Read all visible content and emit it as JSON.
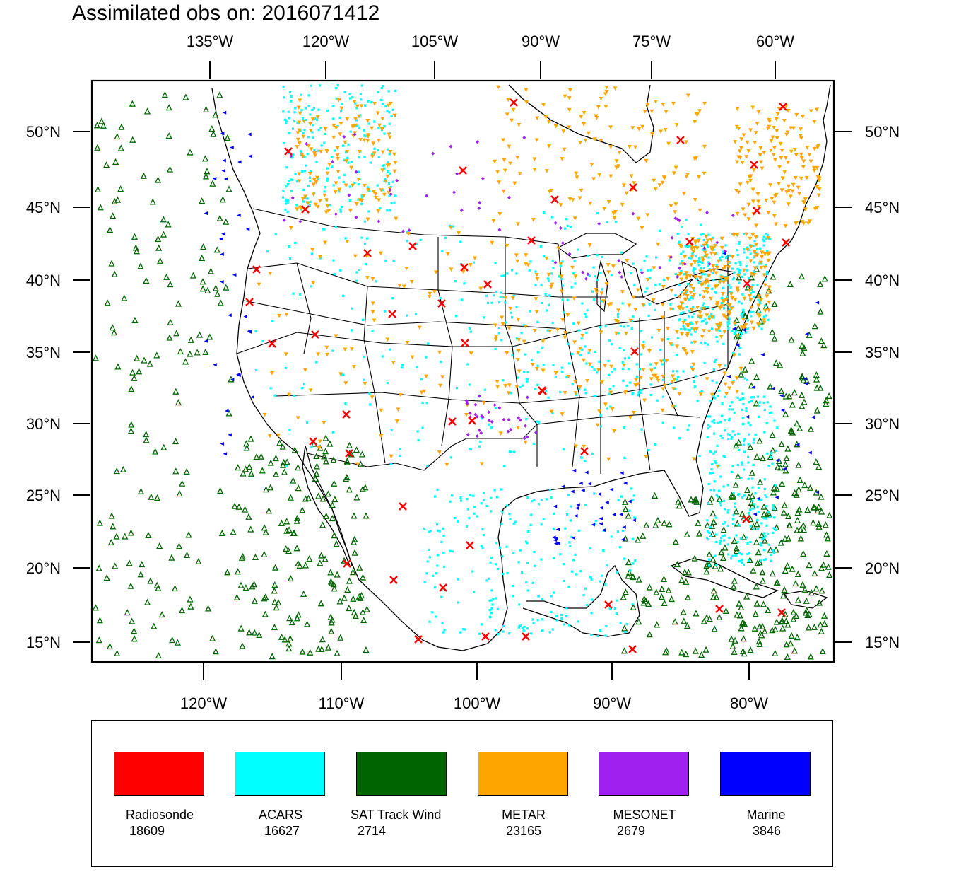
{
  "title": "Assimilated obs on: 2016071412",
  "map": {
    "lat_labels": [
      "15°N",
      "20°N",
      "25°N",
      "30°N",
      "35°N",
      "40°N",
      "45°N",
      "50°N"
    ],
    "top_lon_labels": [
      "135°W",
      "120°W",
      "105°W",
      "90°W",
      "75°W",
      "60°W"
    ],
    "bottom_lon_labels": [
      "120°W",
      "110°W",
      "100°W",
      "90°W",
      "80°W"
    ]
  },
  "legend": [
    {
      "name": "Radiosonde",
      "count": "18609",
      "color": "#ff0000",
      "marker": "x"
    },
    {
      "name": "ACARS",
      "count": "16627",
      "color": "#00ffff",
      "marker": "square-dot"
    },
    {
      "name": "SAT Track Wind",
      "count": "2714",
      "color": "#006400",
      "marker": "triangle-up"
    },
    {
      "name": "METAR",
      "count": "23165",
      "color": "#ffa500",
      "marker": "triangle-down"
    },
    {
      "name": "MESONET",
      "count": "2679",
      "color": "#a020f0",
      "marker": "diamond"
    },
    {
      "name": "Marine",
      "count": "3846",
      "color": "#0000ff",
      "marker": "triangle-left"
    }
  ]
}
